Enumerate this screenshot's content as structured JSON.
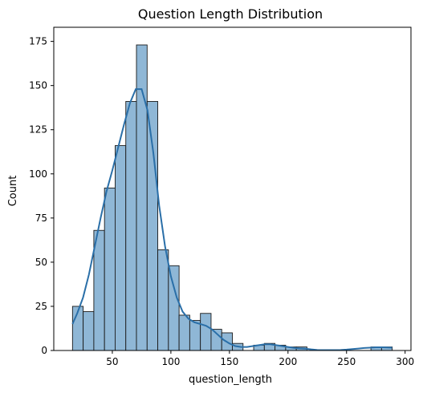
{
  "chart_data": {
    "type": "bar",
    "subtype": "histogram with kde",
    "title": "Question Length Distribution",
    "xlabel": "question_length",
    "ylabel": "Count",
    "xlim": [
      0,
      305
    ],
    "ylim": [
      0,
      183
    ],
    "x_ticks": [
      50,
      100,
      150,
      200,
      250,
      300
    ],
    "y_ticks": [
      0,
      25,
      50,
      75,
      100,
      125,
      150,
      175
    ],
    "grid": false,
    "legend": "none",
    "colors": {
      "bar_fill": "#8fb7d6",
      "bar_edge": "#1a1a1a",
      "kde_line": "#2a6fa8"
    },
    "bins": [
      {
        "x0": 16.0,
        "x1": 25.1,
        "count": 25
      },
      {
        "x0": 25.1,
        "x1": 34.2,
        "count": 22
      },
      {
        "x0": 34.2,
        "x1": 43.3,
        "count": 68
      },
      {
        "x0": 43.3,
        "x1": 52.4,
        "count": 92
      },
      {
        "x0": 52.4,
        "x1": 61.5,
        "count": 116
      },
      {
        "x0": 61.5,
        "x1": 70.6,
        "count": 141
      },
      {
        "x0": 70.6,
        "x1": 79.7,
        "count": 173
      },
      {
        "x0": 79.7,
        "x1": 88.8,
        "count": 141
      },
      {
        "x0": 88.8,
        "x1": 97.9,
        "count": 57
      },
      {
        "x0": 97.9,
        "x1": 107.0,
        "count": 48
      },
      {
        "x0": 107.0,
        "x1": 116.1,
        "count": 20
      },
      {
        "x0": 116.1,
        "x1": 125.2,
        "count": 17
      },
      {
        "x0": 125.2,
        "x1": 134.3,
        "count": 21
      },
      {
        "x0": 134.3,
        "x1": 143.4,
        "count": 12
      },
      {
        "x0": 143.4,
        "x1": 152.5,
        "count": 10
      },
      {
        "x0": 152.5,
        "x1": 161.6,
        "count": 4
      },
      {
        "x0": 161.6,
        "x1": 170.7,
        "count": 0
      },
      {
        "x0": 170.7,
        "x1": 179.8,
        "count": 3
      },
      {
        "x0": 179.8,
        "x1": 188.9,
        "count": 4
      },
      {
        "x0": 188.9,
        "x1": 198.0,
        "count": 3
      },
      {
        "x0": 198.0,
        "x1": 207.1,
        "count": 2
      },
      {
        "x0": 207.1,
        "x1": 216.2,
        "count": 2
      },
      {
        "x0": 216.2,
        "x1": 225.3,
        "count": 0
      },
      {
        "x0": 225.3,
        "x1": 234.4,
        "count": 0
      },
      {
        "x0": 234.4,
        "x1": 243.5,
        "count": 0
      },
      {
        "x0": 243.5,
        "x1": 252.6,
        "count": 0
      },
      {
        "x0": 252.6,
        "x1": 261.7,
        "count": 0
      },
      {
        "x0": 261.7,
        "x1": 270.8,
        "count": 0
      },
      {
        "x0": 270.8,
        "x1": 279.9,
        "count": 2
      },
      {
        "x0": 279.9,
        "x1": 289.0,
        "count": 2
      }
    ],
    "kde": {
      "x": [
        16,
        20,
        25,
        30,
        35,
        40,
        45,
        50,
        55,
        60,
        65,
        70,
        75,
        80,
        85,
        90,
        95,
        100,
        105,
        110,
        115,
        120,
        125,
        130,
        135,
        140,
        145,
        150,
        155,
        160,
        165,
        170,
        175,
        180,
        185,
        190,
        195,
        200,
        205,
        210,
        215,
        220,
        225,
        230,
        235,
        240,
        245,
        250,
        255,
        260,
        265,
        270,
        275,
        280,
        285,
        289
      ],
      "y": [
        15,
        21,
        30,
        43,
        59,
        75,
        90,
        102,
        115,
        128,
        140,
        148,
        148,
        136,
        112,
        82,
        59,
        42,
        30,
        22,
        18,
        16,
        15,
        14,
        12,
        9,
        6,
        4,
        2.5,
        2,
        2,
        2.5,
        3,
        3.5,
        3.5,
        3,
        2.5,
        2,
        1.5,
        1.2,
        1,
        0.6,
        0.3,
        0.2,
        0.2,
        0.2,
        0.3,
        0.5,
        0.8,
        1.1,
        1.4,
        1.6,
        1.8,
        1.8,
        1.7,
        1.6
      ]
    }
  }
}
